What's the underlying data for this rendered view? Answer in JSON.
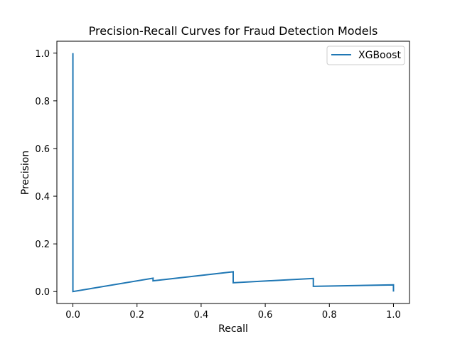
{
  "chart_data": {
    "type": "line",
    "title": "Precision-Recall Curves for Fraud Detection Models",
    "xlabel": "Recall",
    "ylabel": "Precision",
    "xlim": [
      -0.05,
      1.05
    ],
    "ylim": [
      -0.05,
      1.05
    ],
    "xticks": [
      0.0,
      0.2,
      0.4,
      0.6,
      0.8,
      1.0
    ],
    "yticks": [
      0.0,
      0.2,
      0.4,
      0.6,
      0.8,
      1.0
    ],
    "xtick_labels": [
      "0.0",
      "0.2",
      "0.4",
      "0.6",
      "0.8",
      "1.0"
    ],
    "ytick_labels": [
      "0.0",
      "0.2",
      "0.4",
      "0.6",
      "0.8",
      "1.0"
    ],
    "grid": false,
    "legend_position": "upper right",
    "series": [
      {
        "name": "XGBoost",
        "color": "#1f77b4",
        "x": [
          1.0,
          1.0,
          0.75,
          0.75,
          0.5,
          0.5,
          0.25,
          0.25,
          0.0,
          0.0
        ],
        "y": [
          0.0,
          0.028,
          0.022,
          0.055,
          0.037,
          0.083,
          0.045,
          0.056,
          0.0,
          1.0
        ]
      }
    ]
  }
}
